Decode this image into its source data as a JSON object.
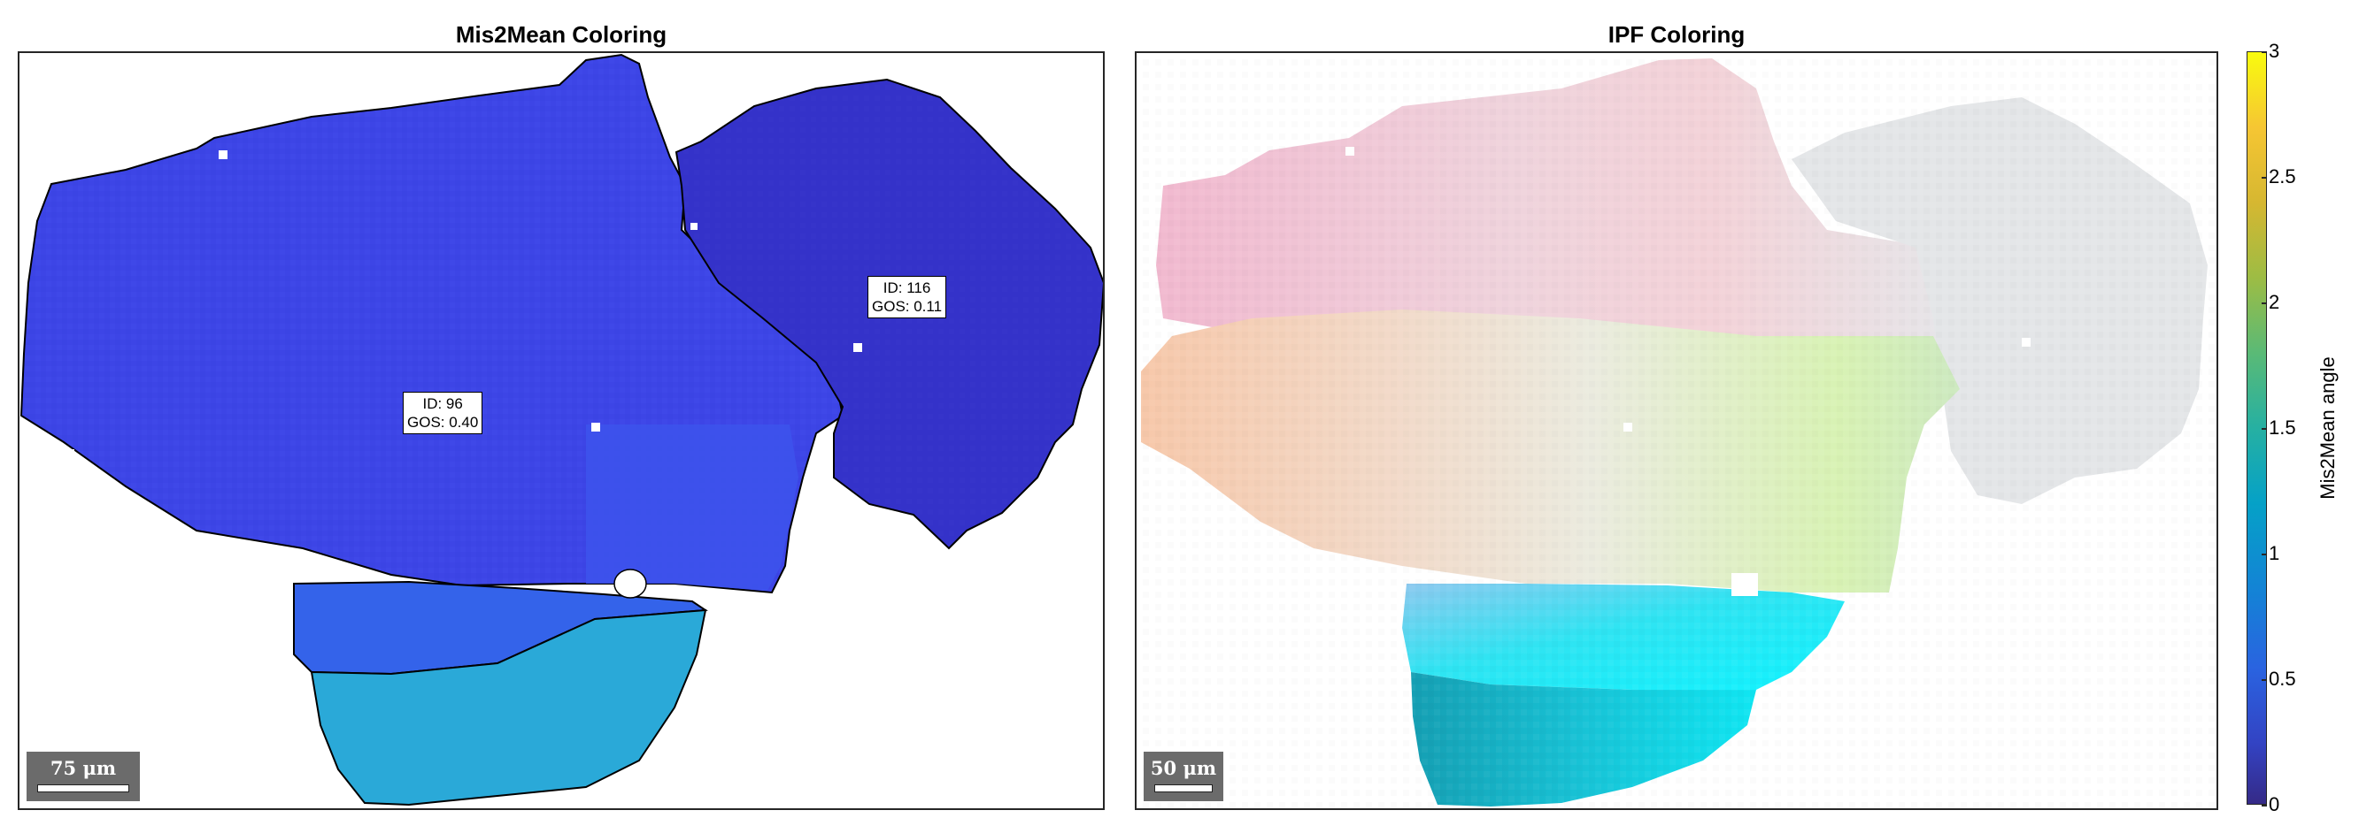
{
  "left_panel": {
    "title": "Mis2Mean Coloring",
    "grain_labels": [
      {
        "id_text": "ID: 96",
        "gos_text": "GOS: 0.40"
      },
      {
        "id_text": "ID: 116",
        "gos_text": "GOS: 0.11"
      }
    ],
    "scalebar": {
      "label": "75 μm"
    },
    "colors": {
      "grain_main": "#3d45e6",
      "grain_right": "#3432c9",
      "grain_bottom": "#2aa9d8",
      "grain_band": "#3463ea",
      "outline": "#000000"
    }
  },
  "right_panel": {
    "title": "IPF Coloring",
    "scalebar": {
      "label": "50 μm"
    }
  },
  "colorbar": {
    "label": "Mis2Mean angle",
    "min": 0,
    "max": 3,
    "ticks": [
      "0",
      "0.5",
      "1",
      "1.5",
      "2",
      "2.5",
      "3"
    ],
    "colormap": "parula"
  }
}
